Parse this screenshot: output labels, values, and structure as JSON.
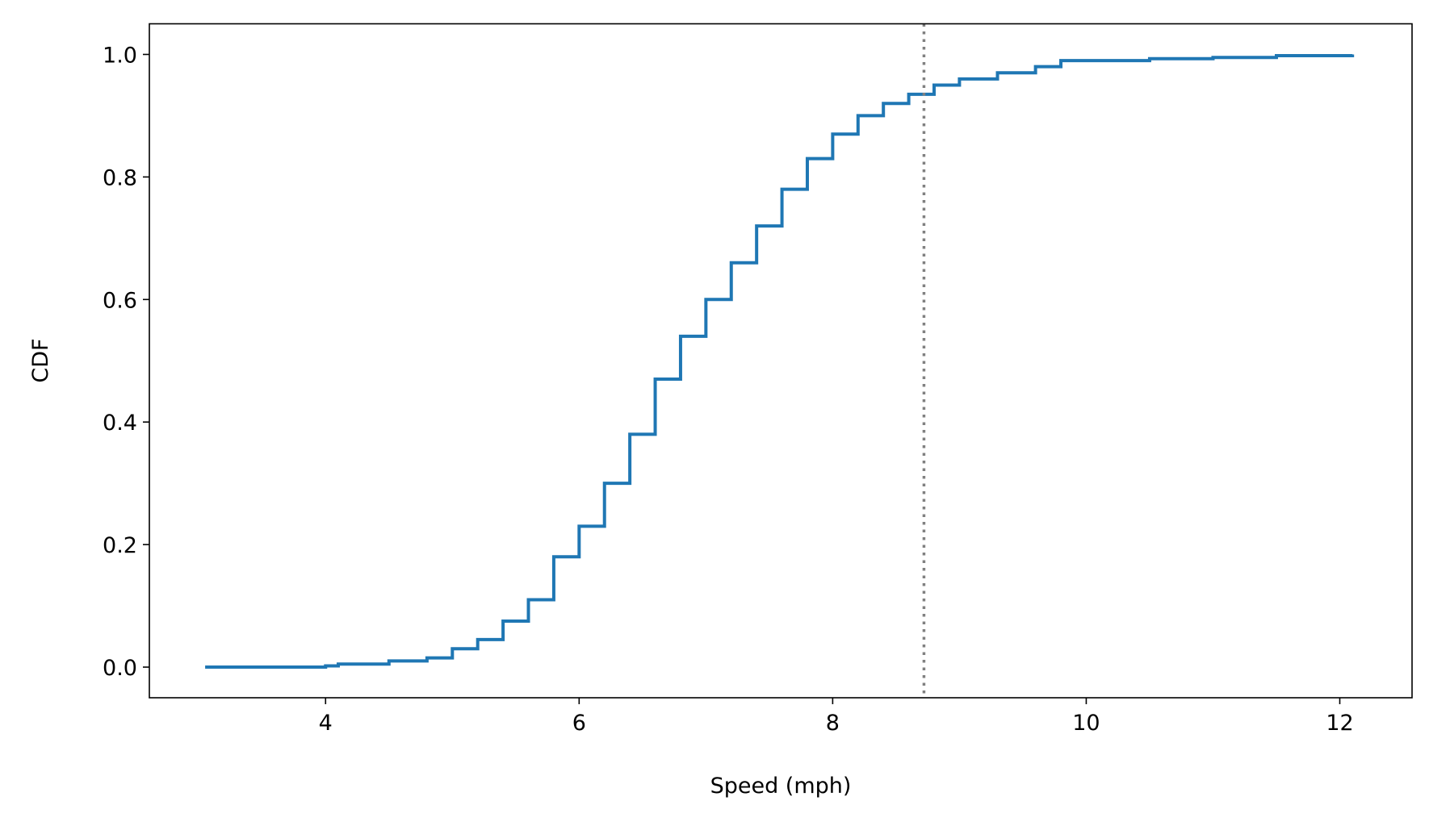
{
  "chart_data": {
    "type": "line",
    "title": "",
    "xlabel": "Speed (mph)",
    "ylabel": "CDF",
    "xlim": [
      2.61,
      12.57
    ],
    "ylim": [
      -0.05,
      1.05
    ],
    "xticks": [
      4,
      6,
      8,
      10,
      12
    ],
    "xtick_labels": [
      "4",
      "6",
      "8",
      "10",
      "12"
    ],
    "yticks": [
      0.0,
      0.2,
      0.4,
      0.6,
      0.8,
      1.0
    ],
    "ytick_labels": [
      "0.0",
      "0.2",
      "0.4",
      "0.6",
      "0.8",
      "1.0"
    ],
    "grid": false,
    "series": [
      {
        "color": "#1f77b4",
        "style": "step",
        "x": [
          3.05,
          4.0,
          4.1,
          4.5,
          4.8,
          5.0,
          5.2,
          5.4,
          5.6,
          5.8,
          6.0,
          6.2,
          6.4,
          6.6,
          6.8,
          7.0,
          7.2,
          7.4,
          7.6,
          7.8,
          8.0,
          8.2,
          8.4,
          8.6,
          8.8,
          9.0,
          9.3,
          9.6,
          9.8,
          10.5,
          11.0,
          11.5,
          12.1
        ],
        "y": [
          0.0,
          0.002,
          0.005,
          0.01,
          0.015,
          0.03,
          0.045,
          0.075,
          0.11,
          0.18,
          0.23,
          0.3,
          0.38,
          0.47,
          0.54,
          0.6,
          0.66,
          0.72,
          0.78,
          0.83,
          0.87,
          0.9,
          0.92,
          0.935,
          0.95,
          0.96,
          0.97,
          0.98,
          0.99,
          0.993,
          0.995,
          0.998,
          1.0
        ]
      }
    ],
    "reference_line": {
      "orientation": "vertical",
      "x": 8.72,
      "color": "#808080",
      "style": "dotted"
    }
  }
}
